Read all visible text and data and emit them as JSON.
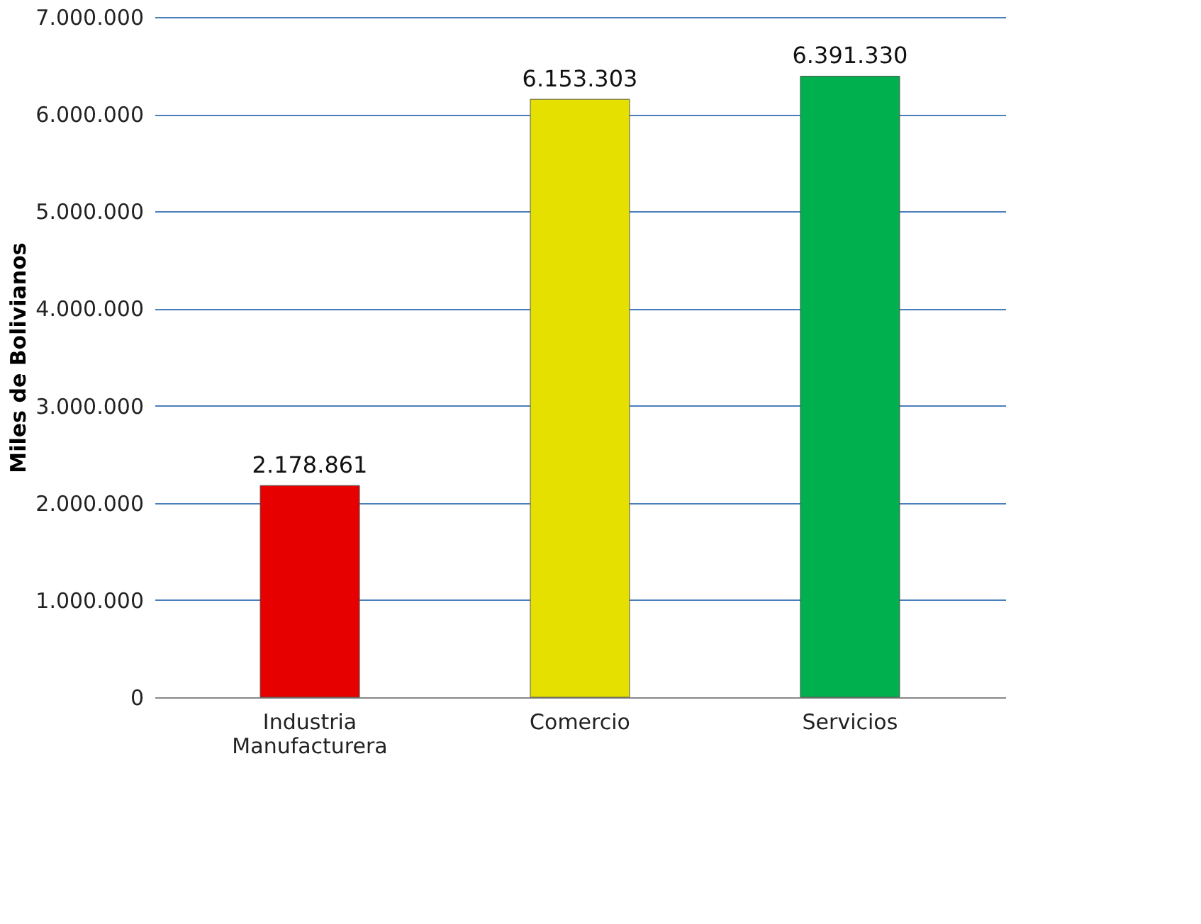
{
  "chart_data": {
    "type": "bar",
    "ylabel": "Miles de Bolivianos",
    "categories": [
      "Industria Manufacturera",
      "Comercio",
      "Servicios"
    ],
    "values": [
      2178861,
      6153303,
      6391330
    ],
    "colors": [
      "#e60000",
      "#e6e000",
      "#00b04f"
    ],
    "value_labels": [
      "2.178.861",
      "6.153.303",
      "6.391.330"
    ],
    "ylim": [
      0,
      7000000
    ],
    "yticks": [
      {
        "value": 0,
        "label": "0"
      },
      {
        "value": 1000000,
        "label": "1.000.000"
      },
      {
        "value": 2000000,
        "label": "2.000.000"
      },
      {
        "value": 3000000,
        "label": "3.000.000"
      },
      {
        "value": 4000000,
        "label": "4.000.000"
      },
      {
        "value": 5000000,
        "label": "5.000.000"
      },
      {
        "value": 6000000,
        "label": "6.000.000"
      },
      {
        "value": 7000000,
        "label": "7.000.000"
      }
    ],
    "grid": "y"
  }
}
